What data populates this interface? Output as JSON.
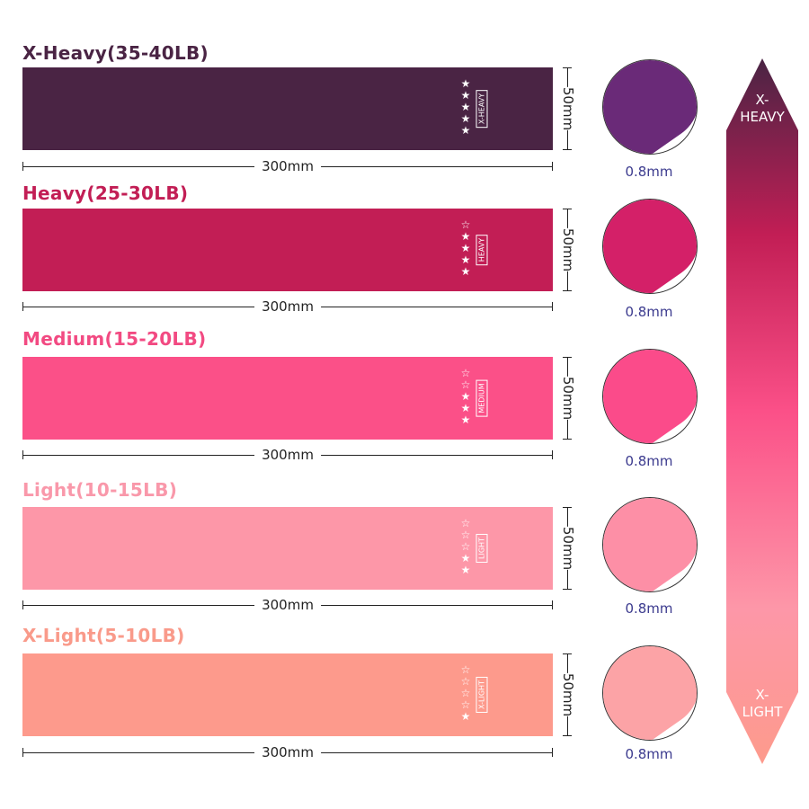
{
  "bands": [
    {
      "label": "X-Heavy(35-40LB)",
      "color": "#4a2444",
      "label_color": "#4a2444",
      "stars_filled": 5,
      "stars_total": 5,
      "tag": "X-HEAVY",
      "length": "300mm",
      "width": "50mm",
      "thickness": "0.8mm",
      "circle_color": "#6a2a78"
    },
    {
      "label": "Heavy(25-30LB)",
      "color": "#c21e55",
      "label_color": "#c21e55",
      "stars_filled": 4,
      "stars_total": 5,
      "tag": "HEAVY",
      "length": "300mm",
      "width": "50mm",
      "thickness": "0.8mm",
      "circle_color": "#d42068"
    },
    {
      "label": "Medium(15-20LB)",
      "color": "#fb5088",
      "label_color": "#f24a82",
      "stars_filled": 3,
      "stars_total": 5,
      "tag": "MEDIUM",
      "length": "300mm",
      "width": "50mm",
      "thickness": "0.8mm",
      "circle_color": "#fb4b8a"
    },
    {
      "label": "Light(10-15LB)",
      "color": "#fd97a8",
      "label_color": "#f998aa",
      "stars_filled": 2,
      "stars_total": 5,
      "tag": "LIGHT",
      "length": "300mm",
      "width": "50mm",
      "thickness": "0.8mm",
      "circle_color": "#fd8fa6"
    },
    {
      "label": "X-Light(5-10LB)",
      "color": "#fd9a8c",
      "label_color": "#f99a8a",
      "stars_filled": 1,
      "stars_total": 5,
      "tag": "X-LIGHT",
      "length": "300mm",
      "width": "50mm",
      "thickness": "0.8mm",
      "circle_color": "#fca3a6"
    }
  ],
  "scale": {
    "top_label": "X-\nHEAVY",
    "top_line1": "X-",
    "top_line2": "HEAVY",
    "bottom_line1": "X-",
    "bottom_line2": "LIGHT",
    "gradient": [
      "#4a2444",
      "#c21e55",
      "#fb5088",
      "#fd97a8",
      "#fd9a8c"
    ]
  }
}
